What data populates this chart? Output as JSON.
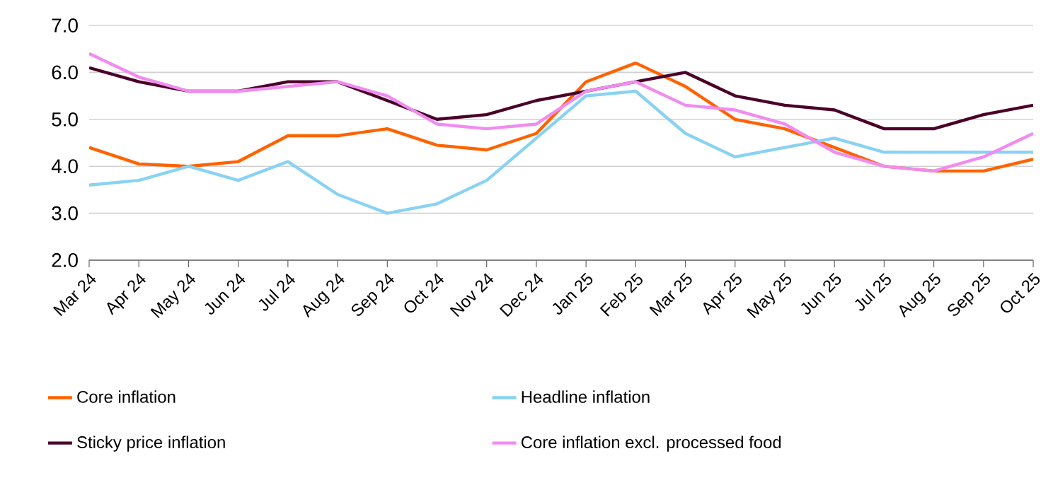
{
  "chart_data": {
    "type": "line",
    "categories": [
      "Mar 24",
      "Apr 24",
      "May 24",
      "Jun 24",
      "Jul 24",
      "Aug 24",
      "Sep 24",
      "Oct 24",
      "Nov 24",
      "Dec 24",
      "Jan 25",
      "Feb 25",
      "Mar 25",
      "Apr 25",
      "May 25",
      "Jun 25",
      "Jul 25",
      "Aug 25",
      "Sep 25",
      "Oct 25"
    ],
    "series": [
      {
        "name": "Core inflation",
        "color": "#ff6200",
        "values": [
          4.4,
          4.05,
          4.0,
          4.1,
          4.65,
          4.65,
          4.8,
          4.45,
          4.35,
          4.7,
          5.8,
          6.2,
          5.7,
          5.0,
          4.8,
          4.4,
          4.0,
          3.9,
          3.9,
          4.15
        ]
      },
      {
        "name": "Headline inflation",
        "color": "#89d2f2",
        "values": [
          3.6,
          3.7,
          4.0,
          3.7,
          4.1,
          3.4,
          3.0,
          3.2,
          3.7,
          4.6,
          5.5,
          5.6,
          4.7,
          4.2,
          4.4,
          4.6,
          4.3,
          4.3,
          4.3,
          4.3
        ]
      },
      {
        "name": "Sticky price inflation",
        "color": "#4a0028",
        "values": [
          6.1,
          5.8,
          5.6,
          5.6,
          5.8,
          5.8,
          5.4,
          5.0,
          5.1,
          5.4,
          5.6,
          5.8,
          6.0,
          5.5,
          5.3,
          5.2,
          4.8,
          4.8,
          5.1,
          5.3
        ]
      },
      {
        "name": "Core inflation excl. processed food",
        "color": "#f08cf0",
        "values": [
          6.4,
          5.9,
          5.6,
          5.6,
          5.7,
          5.8,
          5.5,
          4.9,
          4.8,
          4.9,
          5.6,
          5.8,
          5.3,
          5.2,
          4.9,
          4.3,
          4.0,
          3.9,
          4.2,
          4.7
        ]
      }
    ],
    "ylim": [
      2.0,
      7.0
    ],
    "yticks": [
      {
        "value": 2.0,
        "label": "2.0"
      },
      {
        "value": 3.0,
        "label": "3.0"
      },
      {
        "value": 4.0,
        "label": "4.0"
      },
      {
        "value": 5.0,
        "label": "5.0"
      },
      {
        "value": 6.0,
        "label": "6.0"
      },
      {
        "value": 7.0,
        "label": "7.0"
      }
    ],
    "grid": "y",
    "legend": "bottom",
    "marker": "none",
    "line_style": "solid"
  }
}
